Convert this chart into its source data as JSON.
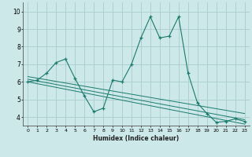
{
  "xlabel": "Humidex (Indice chaleur)",
  "ylabel": "",
  "xlim": [
    -0.5,
    23.5
  ],
  "ylim": [
    3.5,
    10.5
  ],
  "yticks": [
    4,
    5,
    6,
    7,
    8,
    9,
    10
  ],
  "xticks": [
    0,
    1,
    2,
    3,
    4,
    5,
    6,
    7,
    8,
    9,
    10,
    11,
    12,
    13,
    14,
    15,
    16,
    17,
    18,
    19,
    20,
    21,
    22,
    23
  ],
  "bg_color": "#cce8e8",
  "grid_color": "#aacccc",
  "line_color": "#1a7a6e",
  "main_line": {
    "x": [
      0,
      1,
      2,
      3,
      4,
      5,
      6,
      7,
      8,
      9,
      10,
      11,
      12,
      13,
      14,
      15,
      16,
      17,
      18,
      19,
      20,
      21,
      22,
      23
    ],
    "y": [
      6.0,
      6.1,
      6.5,
      7.1,
      7.3,
      6.2,
      5.2,
      4.3,
      4.5,
      6.1,
      6.0,
      7.0,
      8.5,
      9.7,
      8.5,
      8.6,
      9.7,
      6.5,
      4.8,
      4.2,
      3.7,
      3.75,
      3.9,
      3.75
    ]
  },
  "trend_lines": [
    {
      "x": [
        0,
        23
      ],
      "y": [
        6.3,
        4.2
      ]
    },
    {
      "x": [
        0,
        23
      ],
      "y": [
        6.15,
        3.85
      ]
    },
    {
      "x": [
        0,
        23
      ],
      "y": [
        6.0,
        3.6
      ]
    }
  ]
}
